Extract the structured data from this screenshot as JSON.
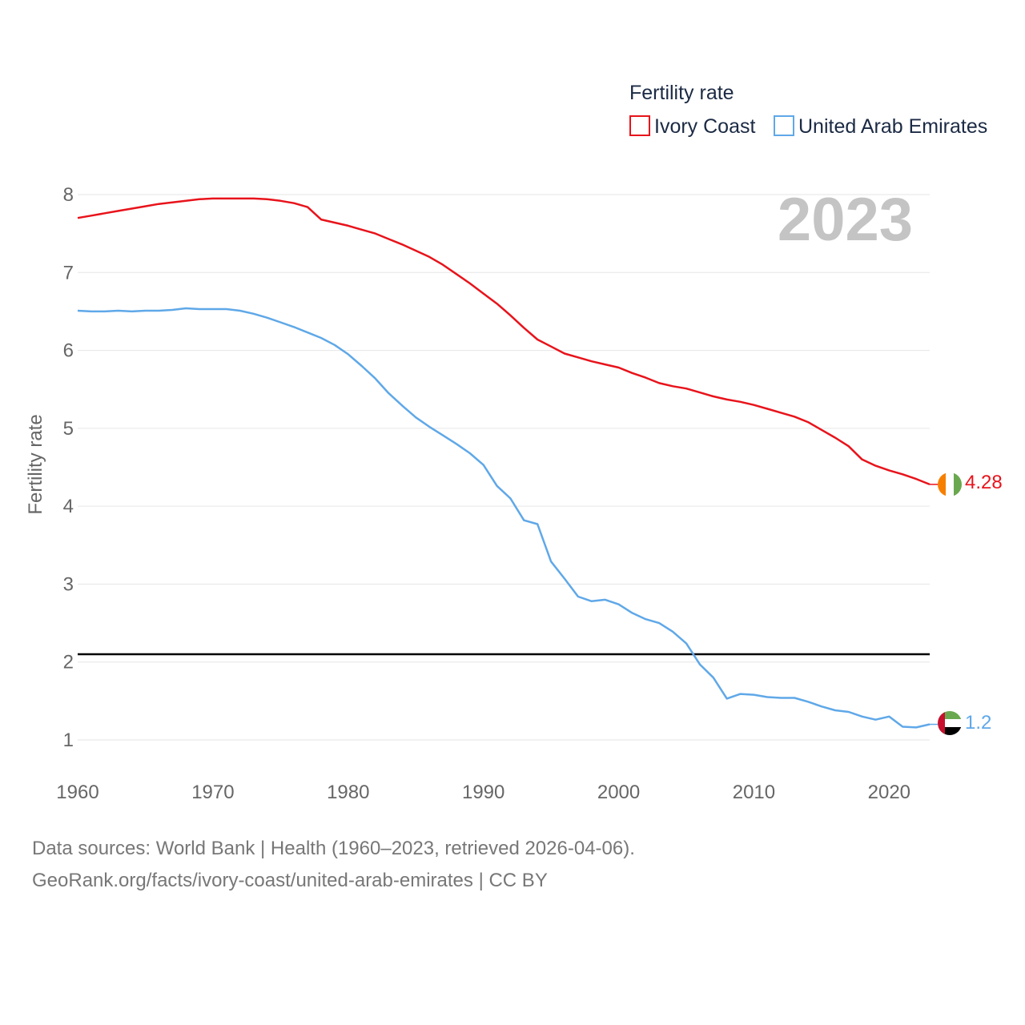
{
  "chart_data": {
    "type": "line",
    "ylabel": "Fertility rate",
    "legend_title": "Fertility rate",
    "legend_position": "top-right",
    "year_watermark": "2023",
    "ylim": [
      0.5,
      8.3
    ],
    "xlim": [
      1960,
      2023
    ],
    "x_ticks": [
      1960,
      1970,
      1980,
      1990,
      2000,
      2010,
      2020
    ],
    "y_ticks": [
      1,
      2,
      3,
      4,
      5,
      6,
      7,
      8
    ],
    "grid": true,
    "reference_line": {
      "value": 2.1,
      "color": "#000000"
    },
    "x": [
      1960,
      1961,
      1962,
      1963,
      1964,
      1965,
      1966,
      1967,
      1968,
      1969,
      1970,
      1971,
      1972,
      1973,
      1974,
      1975,
      1976,
      1977,
      1978,
      1979,
      1980,
      1981,
      1982,
      1983,
      1984,
      1985,
      1986,
      1987,
      1988,
      1989,
      1990,
      1991,
      1992,
      1993,
      1994,
      1995,
      1996,
      1997,
      1998,
      1999,
      2000,
      2001,
      2002,
      2003,
      2004,
      2005,
      2006,
      2007,
      2008,
      2009,
      2010,
      2011,
      2012,
      2013,
      2014,
      2015,
      2016,
      2017,
      2018,
      2019,
      2020,
      2021,
      2022,
      2023
    ],
    "series": [
      {
        "name": "Ivory Coast",
        "color": "#e8131b",
        "end_label": "4.28",
        "flag_icon": "ivory-coast-flag-icon",
        "values": [
          7.7,
          7.73,
          7.76,
          7.79,
          7.82,
          7.85,
          7.88,
          7.9,
          7.92,
          7.94,
          7.95,
          7.95,
          7.95,
          7.95,
          7.94,
          7.92,
          7.89,
          7.84,
          7.68,
          7.64,
          7.6,
          7.55,
          7.5,
          7.43,
          7.36,
          7.28,
          7.2,
          7.1,
          6.98,
          6.86,
          6.73,
          6.6,
          6.45,
          6.29,
          6.14,
          6.05,
          5.96,
          5.91,
          5.86,
          5.82,
          5.78,
          5.71,
          5.65,
          5.58,
          5.54,
          5.51,
          5.46,
          5.41,
          5.37,
          5.34,
          5.3,
          5.25,
          5.2,
          5.15,
          5.08,
          4.98,
          4.88,
          4.77,
          4.6,
          4.52,
          4.46,
          4.41,
          4.35,
          4.28
        ]
      },
      {
        "name": "United Arab Emirates",
        "color": "#5fa8e8",
        "end_label": "1.2",
        "flag_icon": "uae-flag-icon",
        "values": [
          6.51,
          6.5,
          6.5,
          6.51,
          6.5,
          6.51,
          6.51,
          6.52,
          6.54,
          6.53,
          6.53,
          6.53,
          6.51,
          6.47,
          6.42,
          6.36,
          6.3,
          6.23,
          6.16,
          6.07,
          5.95,
          5.8,
          5.64,
          5.45,
          5.29,
          5.14,
          5.02,
          4.91,
          4.8,
          4.68,
          4.53,
          4.26,
          4.1,
          3.82,
          3.77,
          3.29,
          3.07,
          2.84,
          2.78,
          2.8,
          2.74,
          2.63,
          2.55,
          2.5,
          2.39,
          2.24,
          1.97,
          1.8,
          1.53,
          1.59,
          1.58,
          1.55,
          1.54,
          1.54,
          1.49,
          1.43,
          1.38,
          1.36,
          1.3,
          1.26,
          1.3,
          1.17,
          1.16,
          1.2
        ]
      }
    ]
  },
  "footer": {
    "line1": "Data sources: World Bank | Health (1960–2023, retrieved 2026-04-06).",
    "link": "GeoRank.org/facts/ivory-coast/united-arab-emirates",
    "license": " | CC BY"
  }
}
